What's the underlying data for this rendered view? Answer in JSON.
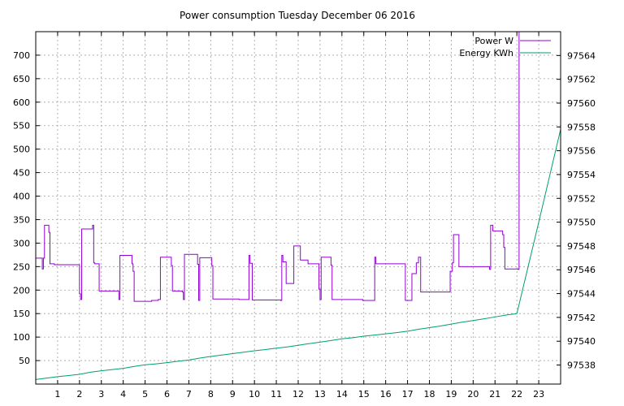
{
  "chart_data": {
    "type": "line",
    "title": "Power consumption Tuesday December 06 2016",
    "xlim": [
      0,
      24
    ],
    "ylim": [
      0,
      750
    ],
    "y2lim": [
      97536.4,
      97566
    ],
    "x_ticks": [
      1,
      2,
      3,
      4,
      5,
      6,
      7,
      8,
      9,
      10,
      11,
      12,
      13,
      14,
      15,
      16,
      17,
      18,
      19,
      20,
      21,
      22,
      23
    ],
    "y_ticks": [
      50,
      100,
      150,
      200,
      250,
      300,
      350,
      400,
      450,
      500,
      550,
      600,
      650,
      700
    ],
    "y2_ticks": [
      97538,
      97540,
      97542,
      97544,
      97546,
      97548,
      97550,
      97552,
      97554,
      97556,
      97558,
      97560,
      97562,
      97564
    ],
    "grid": true,
    "legend_position": "top-right",
    "colors": {
      "power": "#9400d3",
      "energy": "#009e73"
    },
    "series": [
      {
        "name": "Power W",
        "axis": "left",
        "step": true,
        "x": [
          0,
          0.3,
          0.35,
          0.4,
          0.6,
          0.65,
          0.85,
          2.0,
          2.05,
          2.1,
          2.6,
          2.65,
          2.7,
          2.9,
          3.8,
          3.85,
          3.9,
          4.4,
          4.45,
          4.5,
          5.3,
          5.6,
          5.7,
          6.2,
          6.25,
          6.7,
          6.75,
          6.8,
          7.4,
          7.45,
          7.5,
          8.05,
          8.1,
          9.3,
          9.75,
          9.8,
          9.9,
          11.2,
          11.25,
          11.3,
          11.45,
          11.8,
          12.1,
          12.45,
          12.95,
          13.0,
          13.05,
          13.5,
          13.55,
          14.95,
          15.5,
          15.55,
          16.9,
          17.0,
          17.2,
          17.4,
          17.5,
          17.6,
          18.95,
          19.05,
          19.1,
          19.35,
          20.7,
          20.75,
          20.8,
          20.9,
          21.35,
          21.4,
          21.45,
          22.05,
          22.1
        ],
        "values": [
          268,
          245,
          268,
          338,
          323,
          256,
          254,
          192,
          180,
          330,
          338,
          258,
          256,
          198,
          180,
          274,
          274,
          256,
          240,
          176,
          178,
          180,
          270,
          252,
          198,
          196,
          180,
          276,
          255,
          178,
          269,
          252,
          181,
          180,
          274,
          257,
          179,
          178,
          274,
          260,
          214,
          294,
          264,
          256,
          202,
          180,
          270,
          253,
          180,
          178,
          270,
          256,
          178,
          178,
          235,
          258,
          270,
          196,
          240,
          258,
          318,
          250,
          250,
          244,
          338,
          326,
          318,
          291,
          245,
          244,
          750
        ]
      },
      {
        "name": "Energy KWh",
        "axis": "right",
        "x": [
          0,
          0.5,
          1.0,
          1.5,
          2.0,
          2.5,
          3.0,
          3.5,
          4.0,
          4.5,
          5.0,
          5.5,
          6.0,
          6.5,
          7.0,
          7.5,
          8.0,
          8.5,
          9.0,
          9.5,
          10.0,
          10.5,
          11.0,
          11.5,
          12.0,
          12.5,
          13.0,
          13.5,
          14.0,
          14.5,
          15.0,
          15.5,
          16.0,
          16.5,
          17.0,
          17.5,
          18.0,
          18.5,
          19.0,
          19.5,
          20.0,
          20.5,
          21.0,
          21.5,
          22.0,
          23.0,
          24.0
        ],
        "values": [
          97536.78,
          97536.9,
          97537.02,
          97537.12,
          97537.22,
          97537.4,
          97537.52,
          97537.62,
          97537.72,
          97537.88,
          97538.02,
          97538.1,
          97538.2,
          97538.32,
          97538.42,
          97538.58,
          97538.72,
          97538.84,
          97538.96,
          97539.08,
          97539.2,
          97539.3,
          97539.42,
          97539.52,
          97539.66,
          97539.8,
          97539.92,
          97540.06,
          97540.2,
          97540.3,
          97540.42,
          97540.52,
          97540.62,
          97540.72,
          97540.84,
          97541.0,
          97541.14,
          97541.28,
          97541.44,
          97541.6,
          97541.74,
          97541.88,
          97542.04,
          97542.2,
          97542.32,
          97550.0,
          97557.8
        ]
      }
    ]
  }
}
